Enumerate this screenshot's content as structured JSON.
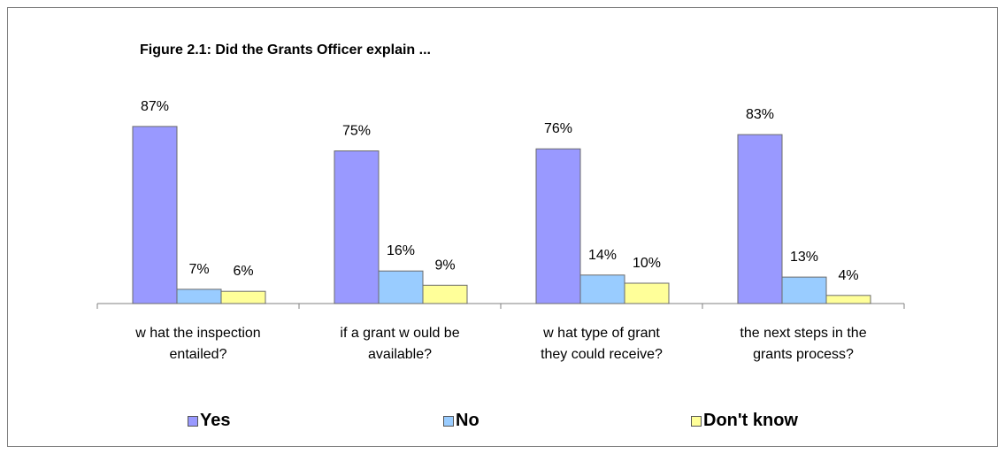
{
  "chart_data": {
    "type": "bar",
    "title": "Figure 2.1:  Did the Grants Officer explain ...",
    "categories": [
      [
        "w hat the inspection",
        "entailed?"
      ],
      [
        "if a grant w ould be",
        "available?"
      ],
      [
        "w hat type of grant",
        "they could receive?"
      ],
      [
        "the next steps in the",
        "grants process?"
      ]
    ],
    "series": [
      {
        "name": "Yes",
        "color": "#9999ff",
        "values": [
          87,
          75,
          76,
          83
        ],
        "labels": [
          "87%",
          "75%",
          "76%",
          "83%"
        ]
      },
      {
        "name": "No",
        "color": "#99ccff",
        "values": [
          7,
          16,
          14,
          13
        ],
        "labels": [
          "7%",
          "16%",
          "14%",
          "13%"
        ]
      },
      {
        "name": "Don't know",
        "color": "#ffff99",
        "values": [
          6,
          9,
          10,
          4
        ],
        "labels": [
          "6%",
          "9%",
          "10%",
          "4%"
        ]
      }
    ],
    "ylim": [
      0,
      100
    ],
    "xlabel": "",
    "ylabel": "",
    "grid": false,
    "legend": "bottom"
  }
}
